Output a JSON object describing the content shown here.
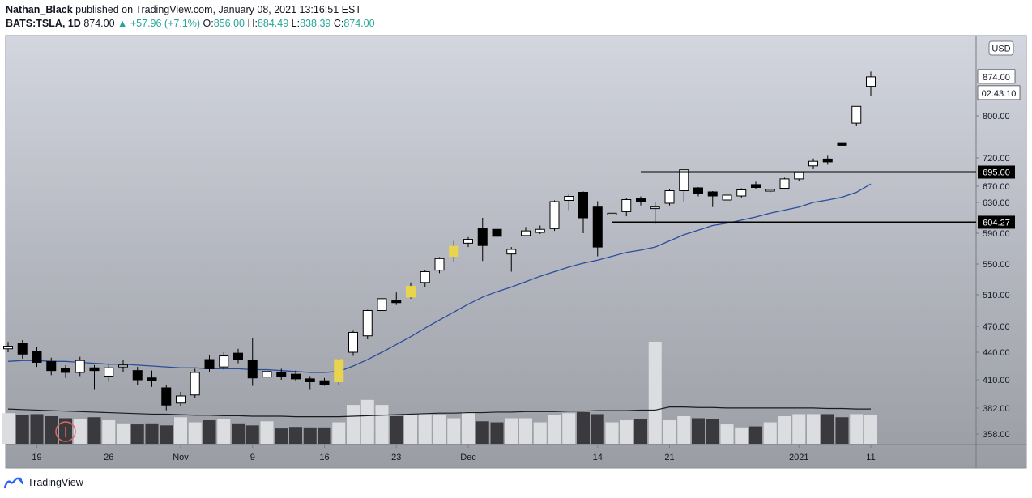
{
  "header": {
    "author": "Nathan_Black",
    "published_text": "published on TradingView.com, January 08, 2021 13:16:51 EST",
    "symbol": "BATS:TSLA, 1D",
    "last": "874.00",
    "change": "▲ +57.96 (+7.1%)",
    "o_label": "O:",
    "o_value": "856.00",
    "h_label": "H:",
    "h_value": "884.49",
    "l_label": "L:",
    "l_value": "838.39",
    "c_label": "C:",
    "c_value": "874.00"
  },
  "footer": {
    "brand": "TradingView"
  },
  "chart_data": {
    "type": "candlestick",
    "currency": "USD",
    "price_ticks": [
      358.0,
      382.0,
      410.0,
      440.0,
      470.0,
      510.0,
      550.0,
      590.0,
      630.0,
      670.0,
      720.0,
      800.0
    ],
    "price_tick_labels": [
      "358.00",
      "382.00",
      "410.00",
      "440.00",
      "470.00",
      "510.00",
      "550.00",
      "590.00",
      "630.00",
      "670.00",
      "720.00",
      "800.00"
    ],
    "ylim": [
      350,
      920
    ],
    "x_labels": [
      {
        "label": "19",
        "i": 2
      },
      {
        "label": "26",
        "i": 7
      },
      {
        "label": "Nov",
        "i": 12
      },
      {
        "label": "9",
        "i": 17
      },
      {
        "label": "16",
        "i": 22
      },
      {
        "label": "23",
        "i": 27
      },
      {
        "label": "Dec",
        "i": 32
      },
      {
        "label": "14",
        "i": 41
      },
      {
        "label": "21",
        "i": 46
      },
      {
        "label": "2021",
        "i": 55
      },
      {
        "label": "11",
        "i": 60
      }
    ],
    "candles": [
      [
        444,
        452,
        440,
        447
      ],
      [
        450,
        454,
        433,
        438
      ],
      [
        441,
        446,
        424,
        429
      ],
      [
        430,
        434,
        415,
        420
      ],
      [
        422,
        426,
        412,
        418
      ],
      [
        418,
        435,
        414,
        431
      ],
      [
        423,
        426,
        400,
        420
      ],
      [
        414,
        428,
        408,
        423
      ],
      [
        424,
        432,
        418,
        426
      ],
      [
        420,
        424,
        405,
        410
      ],
      [
        412,
        420,
        403,
        409
      ],
      [
        402,
        405,
        380,
        385
      ],
      [
        387,
        398,
        384,
        394
      ],
      [
        395,
        422,
        392,
        418
      ],
      [
        432,
        437,
        418,
        422
      ],
      [
        424,
        440,
        421,
        436
      ],
      [
        439,
        444,
        428,
        432
      ],
      [
        431,
        456,
        404,
        412
      ],
      [
        413,
        422,
        396,
        419
      ],
      [
        418,
        422,
        410,
        414
      ],
      [
        416,
        420,
        409,
        411
      ],
      [
        411,
        414,
        400,
        408
      ],
      [
        409,
        412,
        404,
        405
      ],
      [
        408,
        433,
        405,
        432
      ],
      [
        440,
        465,
        436,
        463
      ],
      [
        459,
        491,
        455,
        490
      ],
      [
        490,
        508,
        486,
        505
      ],
      [
        503,
        513,
        497,
        500
      ],
      [
        507,
        526,
        505,
        521
      ],
      [
        526,
        542,
        520,
        540
      ],
      [
        542,
        559,
        538,
        557
      ],
      [
        560,
        580,
        553,
        573
      ],
      [
        577,
        585,
        572,
        582
      ],
      [
        596,
        610,
        554,
        574
      ],
      [
        595,
        600,
        578,
        586
      ],
      [
        563,
        572,
        540,
        569
      ],
      [
        587,
        598,
        586,
        593
      ],
      [
        591,
        600,
        589,
        595
      ],
      [
        596,
        635,
        593,
        632
      ],
      [
        635,
        652,
        620,
        645
      ],
      [
        655,
        657,
        590,
        610
      ],
      [
        624,
        633,
        560,
        572
      ],
      [
        614,
        622,
        602,
        616
      ],
      [
        618,
        640,
        612,
        637
      ],
      [
        640,
        645,
        626,
        632
      ],
      [
        622,
        630,
        602,
        624
      ],
      [
        629,
        664,
        626,
        659
      ],
      [
        659,
        699,
        630,
        699
      ],
      [
        666,
        668,
        645,
        653
      ],
      [
        656,
        658,
        624,
        646
      ],
      [
        636,
        650,
        628,
        648
      ],
      [
        646,
        665,
        642,
        661
      ],
      [
        673,
        678,
        664,
        667
      ],
      [
        658,
        664,
        655,
        662
      ],
      [
        665,
        685,
        662,
        683
      ],
      [
        683,
        693,
        680,
        694
      ],
      [
        706,
        719,
        700,
        714
      ],
      [
        718,
        724,
        708,
        713
      ],
      [
        749,
        752,
        738,
        744
      ],
      [
        786,
        818,
        780,
        818
      ],
      [
        856,
        884,
        838,
        874
      ]
    ],
    "ma": [
      430,
      431,
      431,
      430,
      430,
      429,
      428,
      427,
      427,
      426,
      425,
      424,
      423,
      423,
      422,
      422,
      422,
      421,
      421,
      420,
      419,
      418,
      418,
      419,
      425,
      432,
      440,
      449,
      458,
      468,
      478,
      488,
      498,
      507,
      514,
      520,
      527,
      534,
      540,
      546,
      551,
      555,
      560,
      565,
      568,
      572,
      580,
      588,
      594,
      600,
      603,
      607,
      611,
      616,
      620,
      624,
      630,
      636,
      643,
      655,
      674
    ],
    "ma_legend": "",
    "volume": [
      60,
      56,
      58,
      54,
      50,
      48,
      52,
      46,
      40,
      38,
      40,
      36,
      52,
      42,
      46,
      48,
      40,
      36,
      44,
      30,
      33,
      32,
      32,
      42,
      76,
      86,
      76,
      54,
      56,
      58,
      56,
      50,
      62,
      44,
      42,
      50,
      50,
      42,
      56,
      60,
      62,
      58,
      42,
      46,
      48,
      50,
      46,
      54,
      50,
      48,
      38,
      32,
      34,
      42,
      54,
      58,
      58,
      58,
      52,
      58,
      56
    ],
    "volume_spike": {
      "i": 45,
      "value": 200
    },
    "volume_ma": [
      68,
      67,
      66,
      65,
      64,
      63,
      62,
      61,
      60,
      59,
      58,
      58,
      57,
      56,
      56,
      55,
      55,
      54,
      54,
      54,
      53,
      53,
      53,
      53,
      54,
      55,
      56,
      57,
      58,
      59,
      60,
      60,
      61,
      61,
      62,
      62,
      63,
      63,
      63,
      64,
      64,
      65,
      65,
      65,
      66,
      66,
      72,
      72,
      71,
      71,
      70,
      70,
      70,
      70,
      70,
      70,
      70,
      69,
      69,
      68,
      68
    ],
    "levels": [
      {
        "value": 695.0,
        "label": "695.00",
        "from_i": 44
      },
      {
        "value": 604.27,
        "label": "604.27",
        "from_i": 42
      }
    ],
    "last_price_label": "874.00",
    "countdown": "02:43:10",
    "highlight_candles": [
      23,
      28,
      31
    ]
  }
}
